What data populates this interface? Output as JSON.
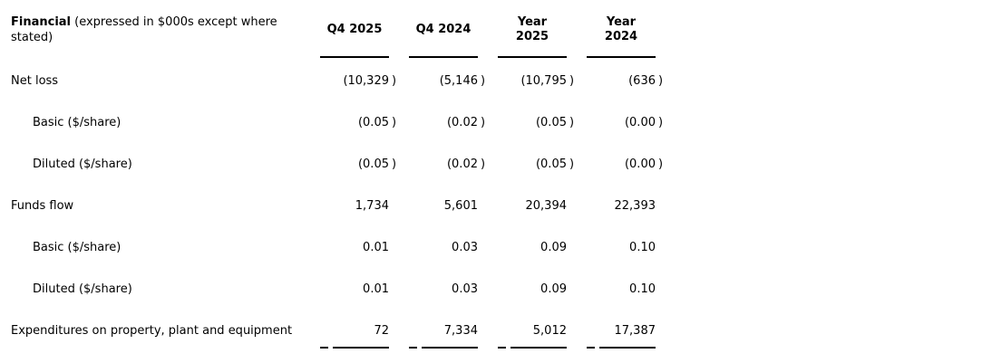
{
  "table": {
    "title_bold": "Financial",
    "title_rest": " (expressed in $000s except where stated)",
    "columns": [
      "Q4 2025",
      "Q4 2024",
      "Year\n2025",
      "Year\n2024"
    ],
    "negative_style": "parentheses",
    "text_color": "#000000",
    "rule_color": "#000000",
    "rows": [
      {
        "label": "Net loss",
        "indent": false,
        "values": [
          "(10,329",
          "(5,146",
          "(10,795",
          "(636"
        ],
        "parens": [
          ")",
          ")",
          ")",
          ")"
        ]
      },
      {
        "label": "Basic ($/share)",
        "indent": true,
        "values": [
          "(0.05",
          "(0.02",
          "(0.05",
          "(0.00"
        ],
        "parens": [
          ")",
          ")",
          ")",
          ")"
        ]
      },
      {
        "label": "Diluted ($/share)",
        "indent": true,
        "values": [
          "(0.05",
          "(0.02",
          "(0.05",
          "(0.00"
        ],
        "parens": [
          ")",
          ")",
          ")",
          ")"
        ]
      },
      {
        "label": "Funds flow",
        "indent": false,
        "values": [
          "1,734",
          "5,601",
          "20,394",
          "22,393"
        ],
        "parens": [
          "",
          "",
          "",
          ""
        ]
      },
      {
        "label": "Basic ($/share)",
        "indent": true,
        "values": [
          "0.01",
          "0.03",
          "0.09",
          "0.10"
        ],
        "parens": [
          "",
          "",
          "",
          ""
        ]
      },
      {
        "label": "Diluted ($/share)",
        "indent": true,
        "values": [
          "0.01",
          "0.03",
          "0.09",
          "0.10"
        ],
        "parens": [
          "",
          "",
          "",
          ""
        ]
      },
      {
        "label": "Expenditures on property, plant and equipment",
        "indent": false,
        "values": [
          "72",
          "7,334",
          "5,012",
          "17,387"
        ],
        "parens": [
          "",
          "",
          "",
          ""
        ]
      }
    ]
  }
}
